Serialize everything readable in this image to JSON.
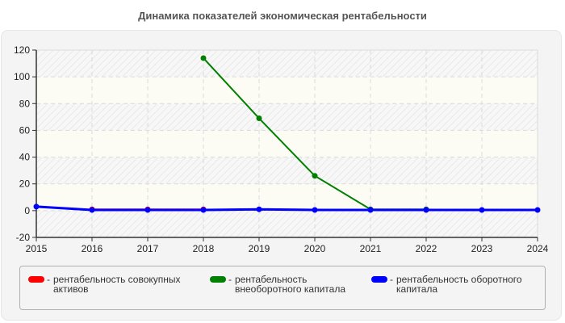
{
  "title": "Динамика показателей экономическая рентабельности",
  "chart_data": {
    "type": "line",
    "title": "Динамика показателей экономическая рентабельности",
    "xlabel": "",
    "ylabel": "",
    "x": [
      2015,
      2016,
      2017,
      2018,
      2019,
      2020,
      2021,
      2022,
      2023,
      2024
    ],
    "ylim": [
      -20,
      120
    ],
    "yticks": [
      -20,
      0,
      20,
      40,
      60,
      80,
      100,
      120
    ],
    "grid": true,
    "legend_position": "bottom",
    "series": [
      {
        "name": "рентабельность совокупных активов",
        "color": "#ff0000",
        "values": [
          null,
          1,
          1,
          1,
          null,
          null,
          null,
          null,
          null,
          null
        ]
      },
      {
        "name": "рентабельность внеоборотного капитала",
        "color": "#008000",
        "values": [
          null,
          null,
          null,
          114,
          69,
          26,
          1,
          1,
          null,
          null
        ]
      },
      {
        "name": "рентабельность оборотного капитала",
        "color": "#0000ff",
        "values": [
          3,
          0.5,
          0.5,
          0.5,
          1,
          0.5,
          0.5,
          0.5,
          0.5,
          0.5
        ]
      }
    ]
  },
  "legend": [
    {
      "label": "рентабельность совокупных активов",
      "color": "#ff0000"
    },
    {
      "label": "рентабельность внеоборотного капитала",
      "color": "#008000"
    },
    {
      "label": "рентабельность оборотного капитала",
      "color": "#0000ff"
    }
  ],
  "legend_dash": "-"
}
